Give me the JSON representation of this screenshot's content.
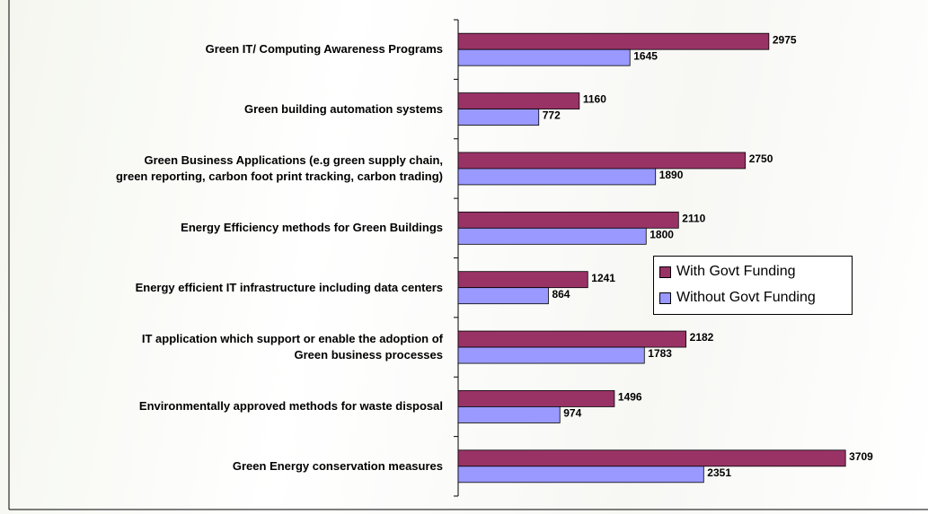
{
  "chart_data": {
    "type": "bar",
    "orientation": "horizontal",
    "categories": [
      "Green IT/ Computing Awareness Programs",
      "Green building automation systems",
      "Green Business Applications (e.g green supply chain,\ngreen reporting, carbon foot print tracking, carbon trading)",
      "Energy Efficiency methods for Green Buildings",
      "Energy efficient IT infrastructure including data centers",
      "IT application which support or enable the adoption of\nGreen business processes",
      "Environmentally approved methods for waste disposal",
      "Green Energy conservation measures"
    ],
    "series": [
      {
        "name": "With Govt Funding",
        "color": "#993366",
        "values": [
          2975,
          1160,
          2750,
          2110,
          1241,
          2182,
          1496,
          3709
        ]
      },
      {
        "name": "Without Govt Funding",
        "color": "#9999ff",
        "values": [
          1645,
          772,
          1890,
          1800,
          864,
          1783,
          974,
          2351
        ]
      }
    ],
    "xlim": [
      0,
      4000
    ],
    "legend": "right"
  }
}
